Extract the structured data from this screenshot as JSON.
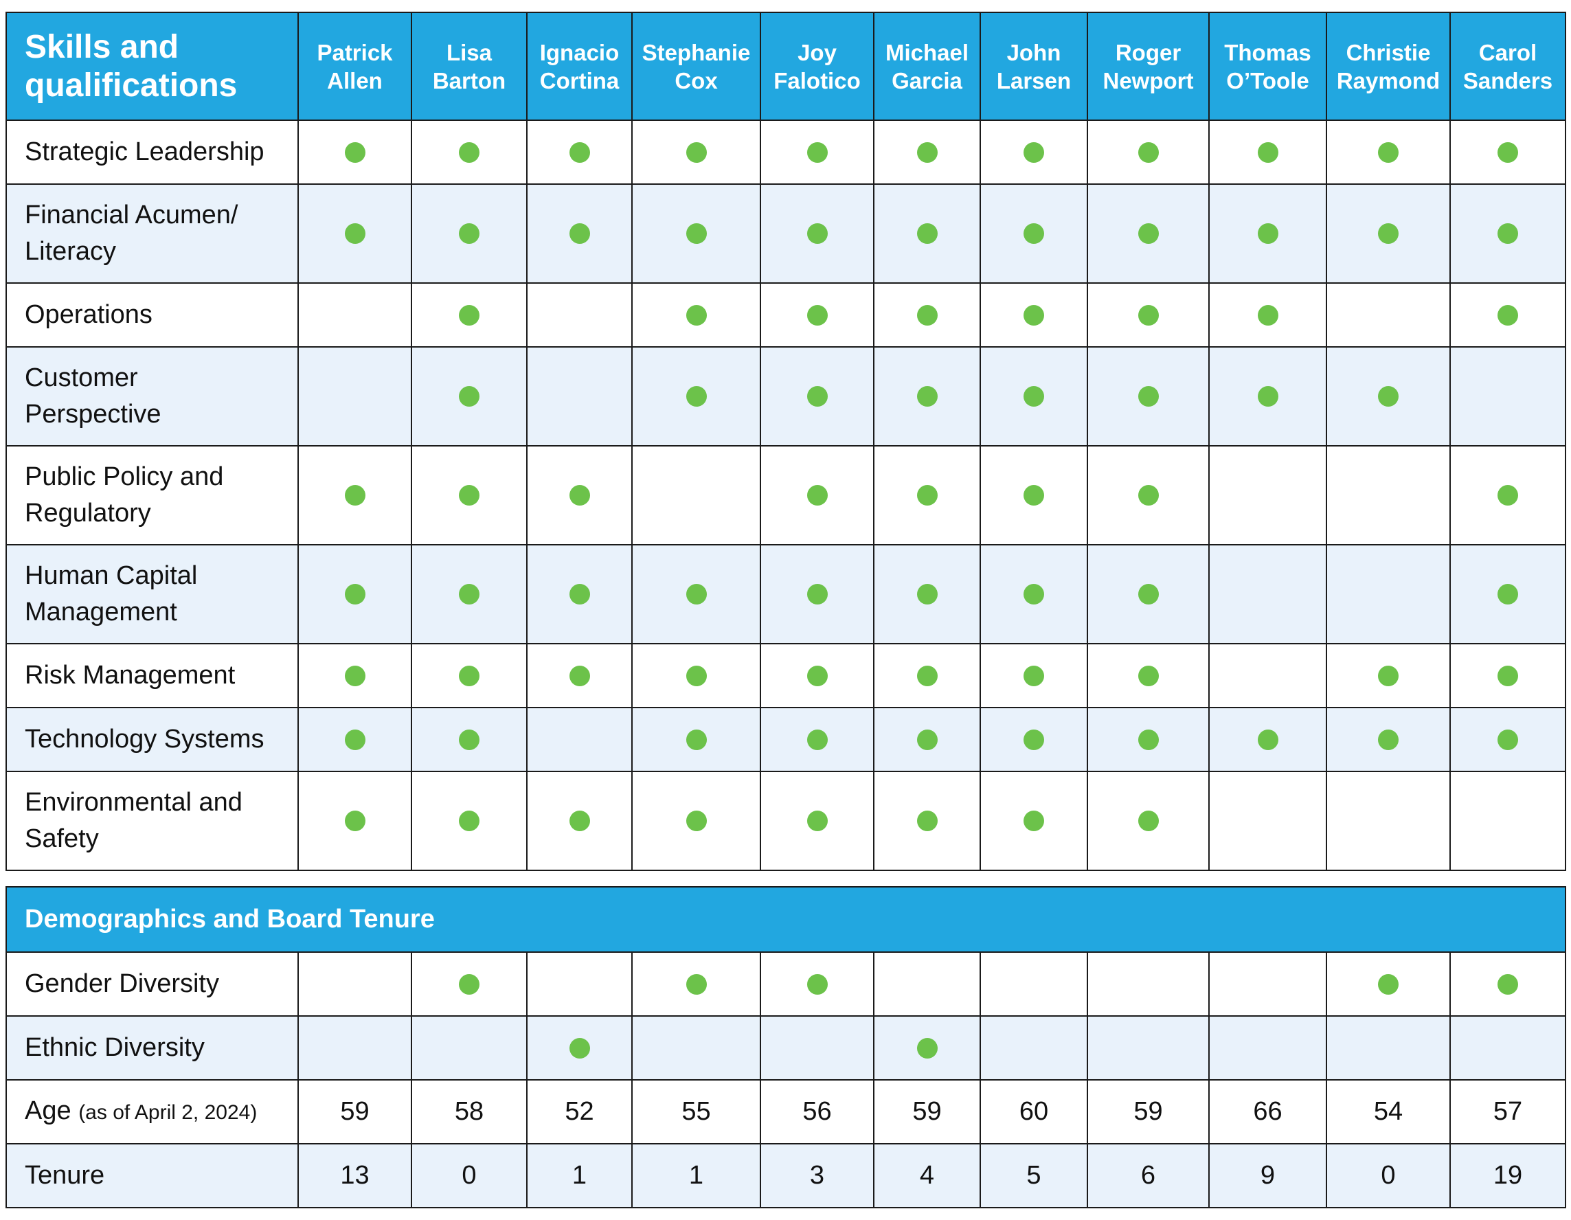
{
  "header": {
    "title_line1": "Skills and",
    "title_line2": "qualifications",
    "directors": [
      {
        "first": "Patrick",
        "last": "Allen"
      },
      {
        "first": "Lisa",
        "last": "Barton"
      },
      {
        "first": "Ignacio",
        "last": "Cortina"
      },
      {
        "first": "Stephanie",
        "last": "Cox"
      },
      {
        "first": "Joy",
        "last": "Falotico"
      },
      {
        "first": "Michael",
        "last": "Garcia"
      },
      {
        "first": "John",
        "last": "Larsen"
      },
      {
        "first": "Roger",
        "last": "Newport"
      },
      {
        "first": "Thomas",
        "last": "O’Toole"
      },
      {
        "first": "Christie",
        "last": "Raymond"
      },
      {
        "first": "Carol",
        "last": "Sanders"
      }
    ]
  },
  "skills": [
    {
      "line1": "Strategic Leadership",
      "line2": "",
      "marks": [
        true,
        true,
        true,
        true,
        true,
        true,
        true,
        true,
        true,
        true,
        true
      ]
    },
    {
      "line1": "Financial Acumen/",
      "line2": "Literacy",
      "marks": [
        true,
        true,
        true,
        true,
        true,
        true,
        true,
        true,
        true,
        true,
        true
      ]
    },
    {
      "line1": "Operations",
      "line2": "",
      "marks": [
        false,
        true,
        false,
        true,
        true,
        true,
        true,
        true,
        true,
        false,
        true
      ]
    },
    {
      "line1": "Customer",
      "line2": "Perspective",
      "marks": [
        false,
        true,
        false,
        true,
        true,
        true,
        true,
        true,
        true,
        true,
        false
      ]
    },
    {
      "line1": "Public Policy and",
      "line2": "Regulatory",
      "marks": [
        true,
        true,
        true,
        false,
        true,
        true,
        true,
        true,
        false,
        false,
        true
      ]
    },
    {
      "line1": "Human Capital",
      "line2": "Management",
      "marks": [
        true,
        true,
        true,
        true,
        true,
        true,
        true,
        true,
        false,
        false,
        true
      ]
    },
    {
      "line1": "Risk Management",
      "line2": "",
      "marks": [
        true,
        true,
        true,
        true,
        true,
        true,
        true,
        true,
        false,
        true,
        true
      ]
    },
    {
      "line1": "Technology Systems",
      "line2": "",
      "marks": [
        true,
        true,
        false,
        true,
        true,
        true,
        true,
        true,
        true,
        true,
        true
      ]
    },
    {
      "line1": "Environmental and",
      "line2": "Safety",
      "marks": [
        true,
        true,
        true,
        true,
        true,
        true,
        true,
        true,
        false,
        false,
        false
      ]
    }
  ],
  "demographics": {
    "title": "Demographics and Board Tenure",
    "gender": {
      "label": "Gender Diversity",
      "marks": [
        false,
        true,
        false,
        true,
        true,
        false,
        false,
        false,
        false,
        true,
        true
      ]
    },
    "ethnic": {
      "label": "Ethnic Diversity",
      "marks": [
        false,
        false,
        true,
        false,
        false,
        true,
        false,
        false,
        false,
        false,
        false
      ]
    },
    "age": {
      "label": "Age",
      "note": "(as of April 2, 2024)",
      "values": [
        "59",
        "58",
        "52",
        "55",
        "56",
        "59",
        "60",
        "59",
        "66",
        "54",
        "57"
      ]
    },
    "tenure": {
      "label": "Tenure",
      "values": [
        "13",
        "0",
        "1",
        "1",
        "3",
        "4",
        "5",
        "6",
        "9",
        "0",
        "19"
      ]
    }
  },
  "colors": {
    "header_blue": "#22a7e0",
    "dot_green": "#6cc24a",
    "alt_row": "#e9f2fb"
  }
}
